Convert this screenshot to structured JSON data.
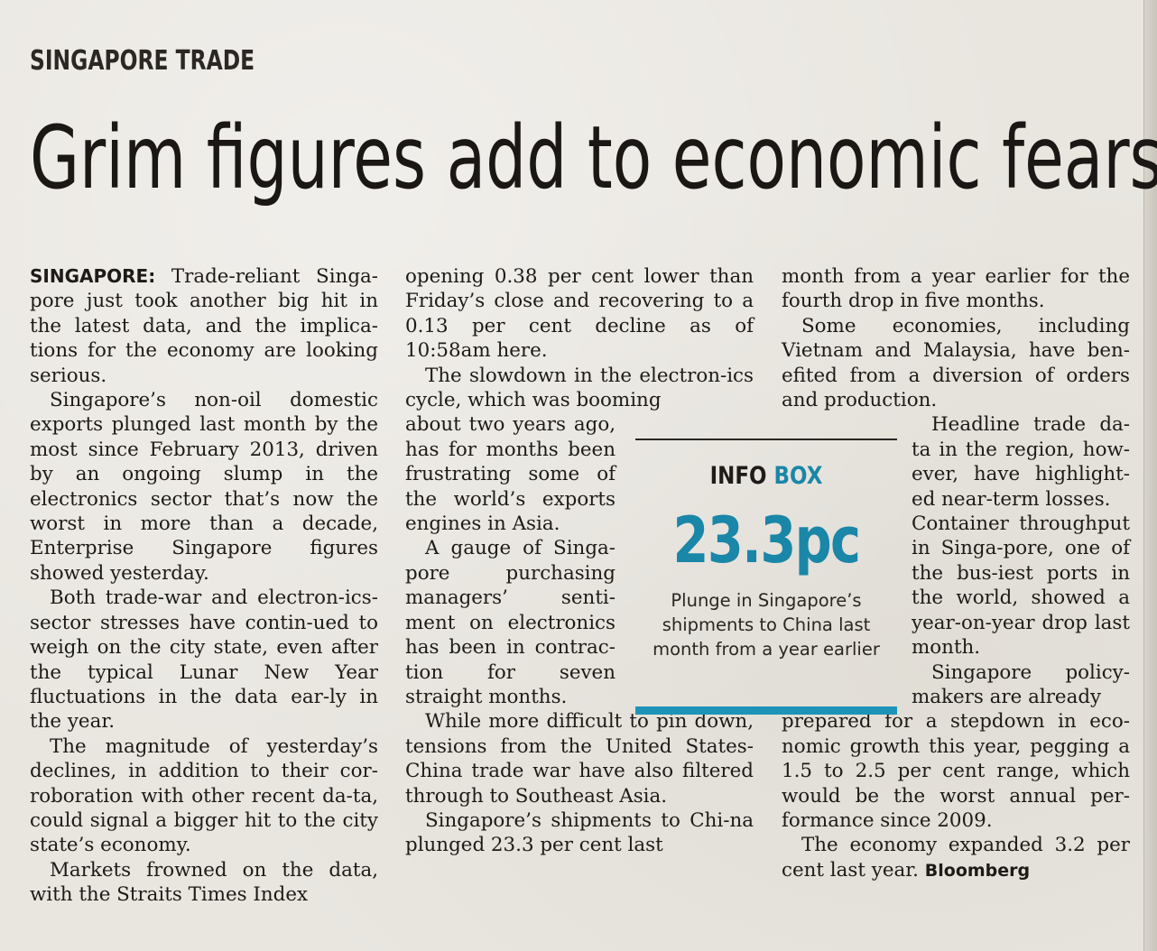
{
  "section": "SINGAPORE TRADE",
  "headline": "Grim figures add to economic fears",
  "info_box": {
    "title_part1": "INFO",
    "title_part2": "BOX",
    "figure": "23.3pc",
    "caption": "Plunge in Singapore’s shipments to China last month from a year earlier",
    "accent_color": "#1a86a8"
  },
  "column1": {
    "dateline": "SINGAPORE:",
    "p1": " Trade-reliant Singa-pore just took another big hit in the latest data, and the implica-tions for the economy are looking serious.",
    "p2": "Singapore’s non-oil domestic exports plunged last month by the most since February 2013, driven by an ongoing slump in the electronics sector that’s now the worst in more than a decade, Enterprise Singapore figures showed yesterday.",
    "p3": "Both trade-war and electron-ics-sector stresses have contin-ued to weigh on the city state, even after the typical Lunar New Year fluctuations in the data ear-ly in the year.",
    "p4": "The magnitude of yesterday’s declines, in addition to their cor-roboration with other recent da-ta, could signal a bigger hit to the city state’s economy.",
    "p5": "Markets frowned on the data, with the Straits Times Index"
  },
  "column2": {
    "p1": "opening 0.38 per cent lower than Friday’s close and recovering to a 0.13 per cent decline as of 10:58am here.",
    "p2a": "The slowdown in the electron-ics cycle, which was booming",
    "p2b": "about two years ago, has for months been frustrating some of the world’s exports engines in Asia.",
    "p3": "A gauge of Singa-pore purchasing managers’ senti-ment on electronics has been in contrac-tion for seven straight months.",
    "p4": "While more difficult to pin down, tensions from the United States-China trade war have also filtered through to Southeast Asia.",
    "p5": "Singapore’s shipments to Chi-na plunged 23.3 per cent last"
  },
  "column3": {
    "p1": "month from a year earlier for the fourth drop in five months.",
    "p2": "Some economies, including Vietnam and Malaysia, have ben-efited from a diversion of orders and production.",
    "p3": "Headline trade da-ta in the region, how-ever, have highlight-ed near-term losses.",
    "p4": "Container throughput in Singa-pore, one of the bus-iest ports in the world, showed a year-on-year drop last month.",
    "p5a": "Singapore policy-makers are already",
    "p5b": "prepared for a stepdown in eco-nomic growth this year, pegging a 1.5 to 2.5 per cent range, which would be the worst annual per-formance since 2009.",
    "p6": "The economy expanded 3.2 per cent last year.",
    "byline": "Bloomberg"
  }
}
